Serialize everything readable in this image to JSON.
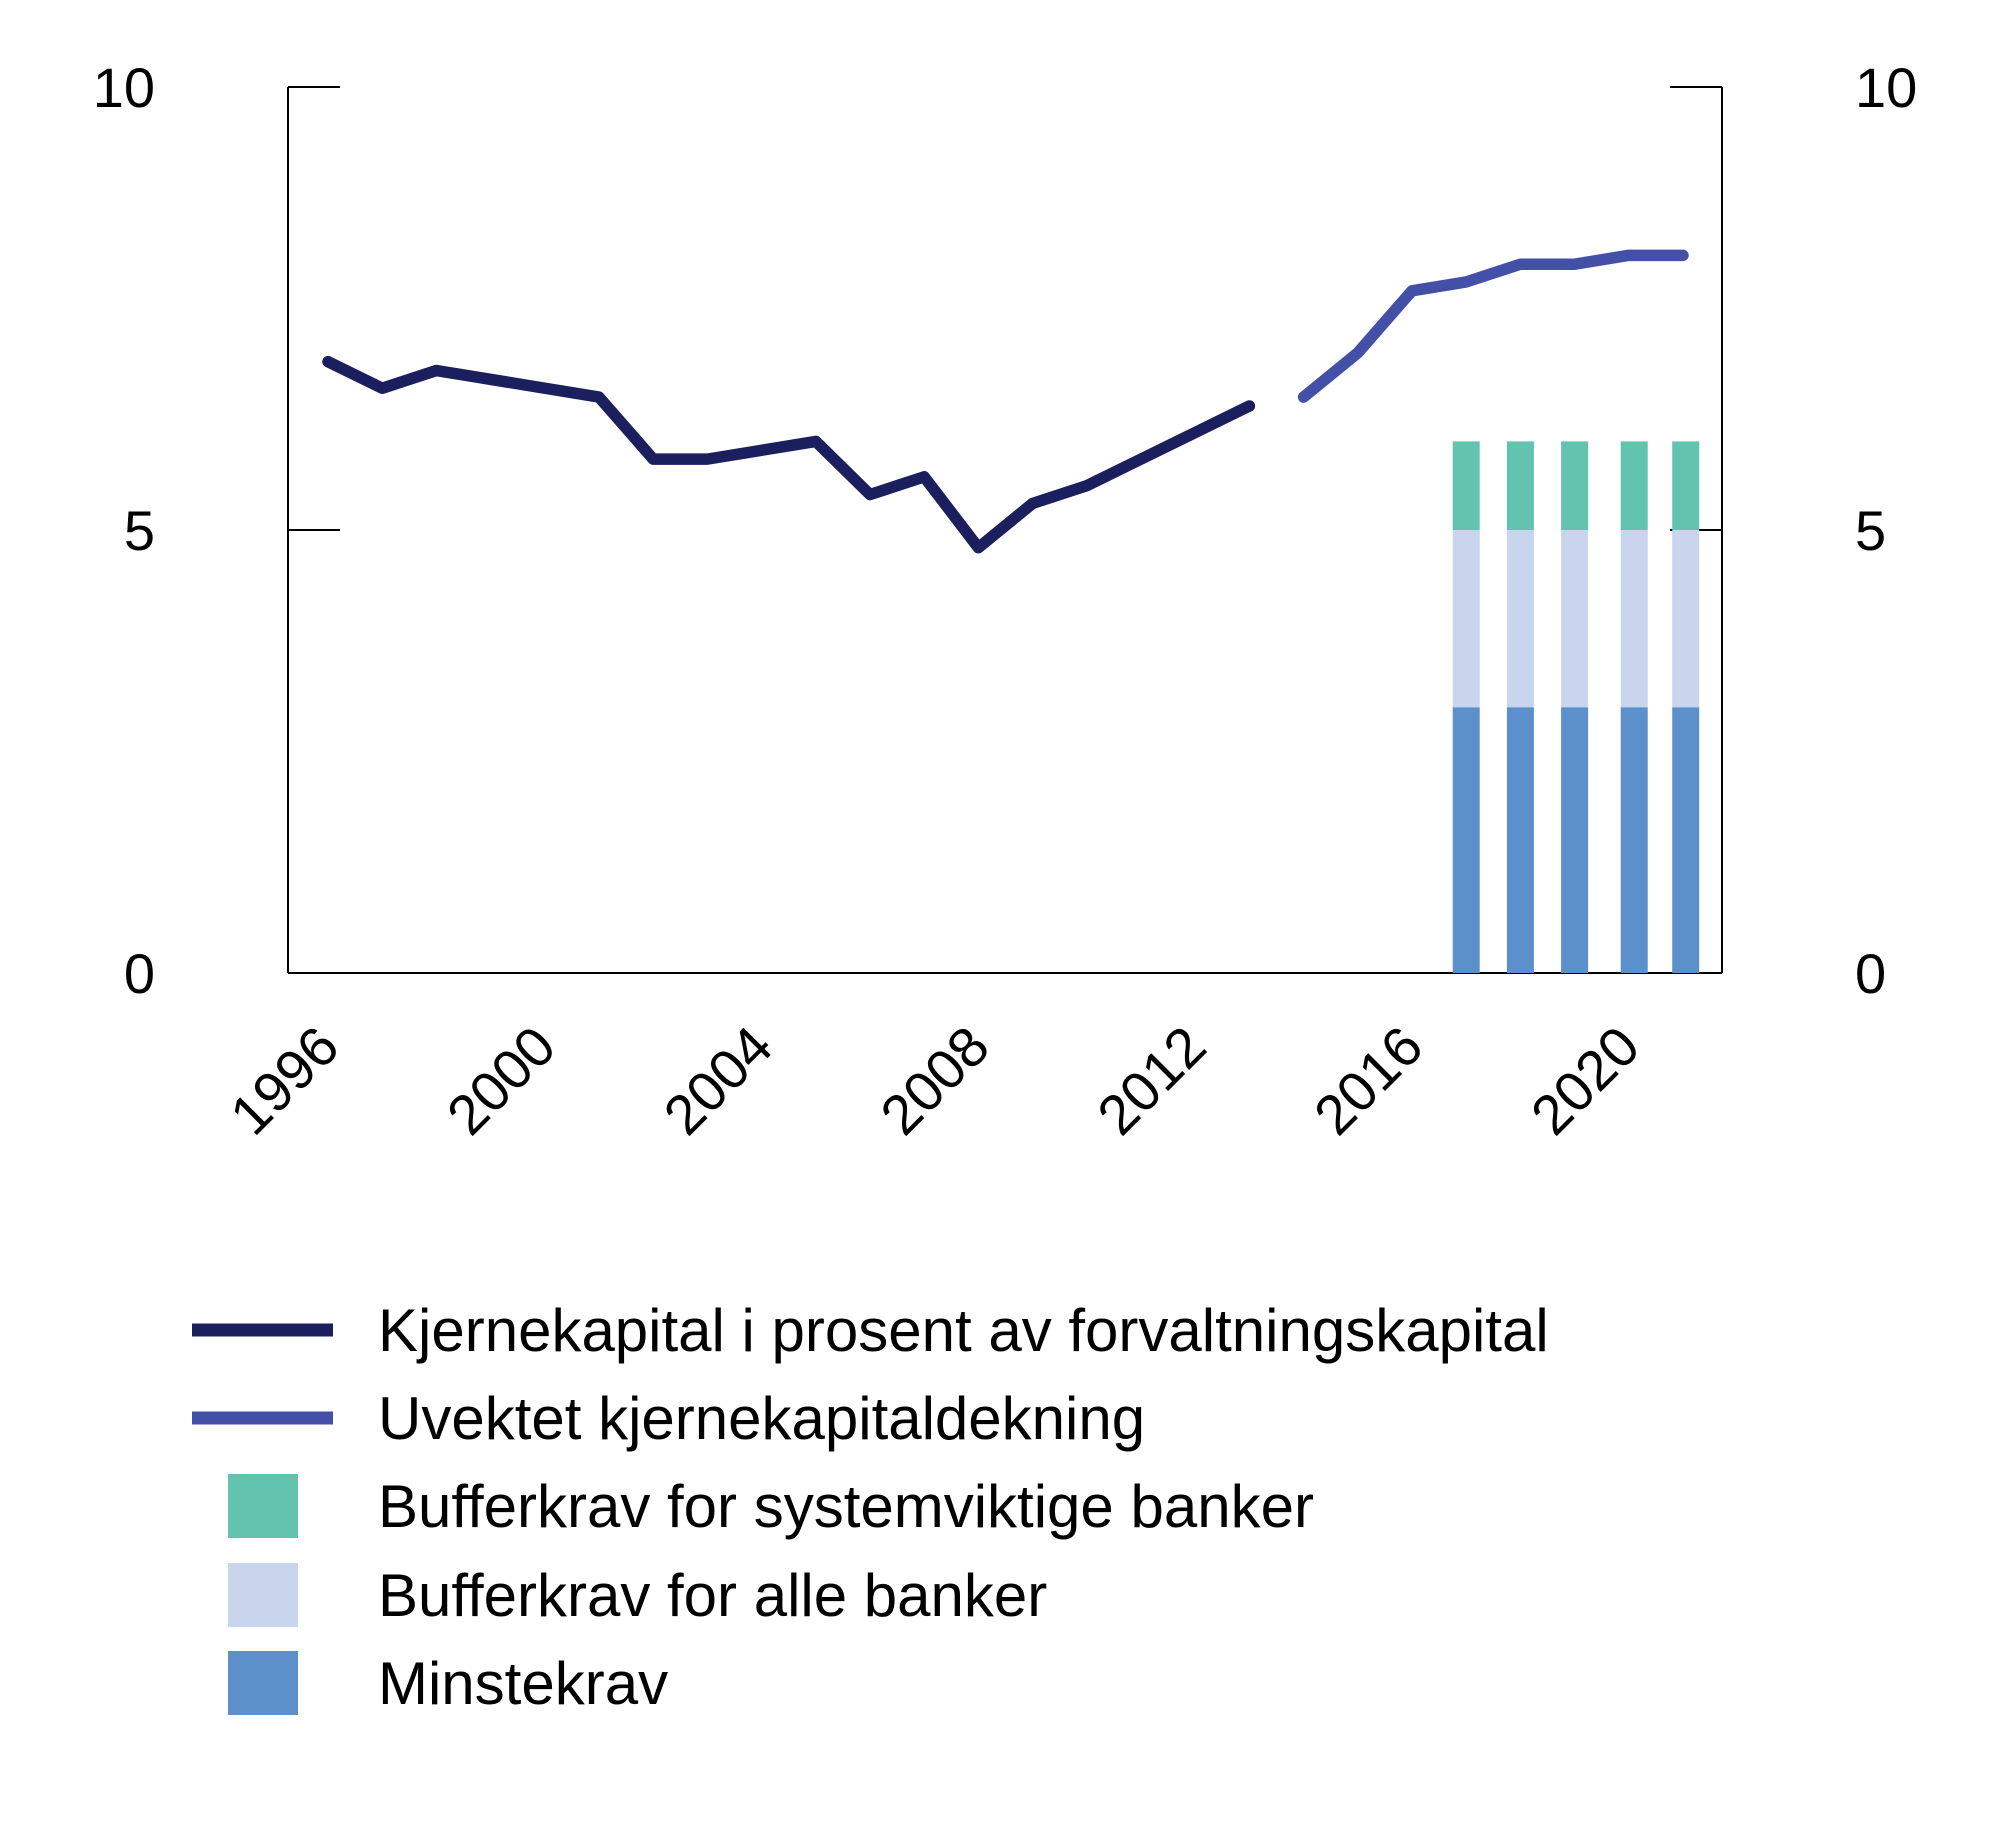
{
  "chart_data": {
    "type": "line+stacked-bar",
    "title": "",
    "xlabel": "",
    "ylabel": "",
    "ylim": [
      0,
      10
    ],
    "y2lim": [
      0,
      10
    ],
    "yticks": [
      0,
      5,
      10
    ],
    "xticks": [
      1996,
      2000,
      2004,
      2008,
      2012,
      2016,
      2020
    ],
    "xlim": [
      1995.3,
      2021.8
    ],
    "grid": false,
    "legend_position": "bottom",
    "colors": {
      "line1": "#1b1f5e",
      "line2": "#4350a8",
      "systemic": "#62c4ae",
      "all_banks": "#c9d5ec",
      "minimum": "#5c90cb",
      "axis": "#000000"
    },
    "lines": [
      {
        "name": "Kjernekapital i prosent av forvaltningskapital",
        "color": "#1b1f5e",
        "x": [
          1996,
          1997,
          1998,
          2001,
          2002,
          2003,
          2005,
          2006,
          2007,
          2008,
          2009,
          2010,
          2013
        ],
        "y": [
          6.9,
          6.6,
          6.8,
          6.5,
          5.8,
          5.8,
          6.0,
          5.4,
          5.6,
          4.8,
          5.3,
          5.5,
          6.4
        ]
      },
      {
        "name": "Uvektet kjernekapitaldekning",
        "color": "#4350a8",
        "x": [
          2014,
          2015,
          2016,
          2017,
          2018,
          2019,
          2020,
          2021
        ],
        "y": [
          6.5,
          7.0,
          7.7,
          7.8,
          8.0,
          8.0,
          8.1,
          8.1
        ]
      }
    ],
    "bars": {
      "x": [
        2017,
        2018,
        2019,
        2020.1,
        2021.05
      ],
      "series": [
        {
          "name": "Minstekrav",
          "color": "#5c90cb",
          "values": [
            3,
            3,
            3,
            3,
            3
          ]
        },
        {
          "name": "Bufferkrav for alle banker",
          "color": "#c9d5ec",
          "values": [
            2,
            2,
            2,
            2,
            2
          ]
        },
        {
          "name": "Bufferkrav for systemviktige banker",
          "color": "#62c4ae",
          "values": [
            1,
            1,
            1,
            1,
            1
          ]
        }
      ]
    },
    "legend": [
      {
        "label": "Kjernekapital i prosent av forvaltningskapital",
        "kind": "line",
        "color": "#1b1f5e"
      },
      {
        "label": "Uvektet kjernekapitaldekning",
        "kind": "line",
        "color": "#4350a8"
      },
      {
        "label": "Bufferkrav for systemviktige banker",
        "kind": "box",
        "color": "#62c4ae"
      },
      {
        "label": "Bufferkrav for alle banker",
        "kind": "box",
        "color": "#c9d5ec"
      },
      {
        "label": "Minstekrav",
        "kind": "box",
        "color": "#5c90cb"
      }
    ]
  }
}
